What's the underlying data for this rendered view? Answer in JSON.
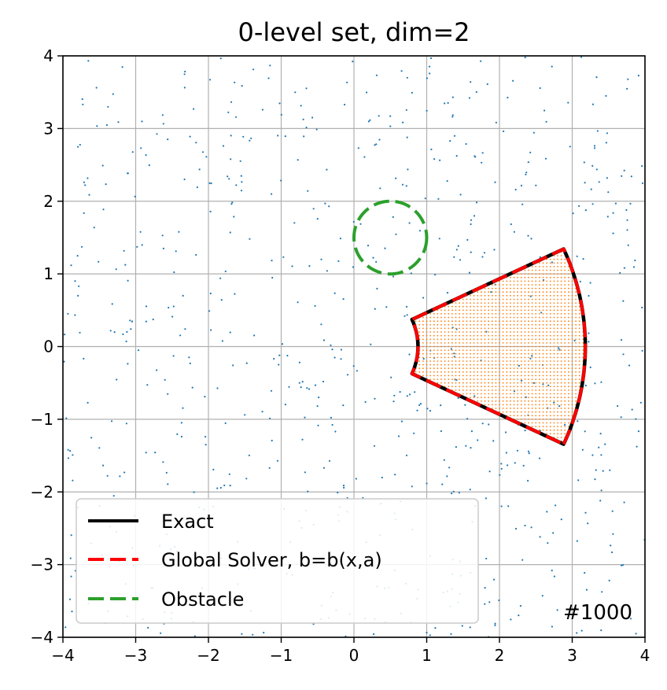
{
  "chart_data": {
    "type": "scatter",
    "title": "0-level set, dim=2",
    "xlabel": "",
    "ylabel": "",
    "xlim": [
      -4,
      4
    ],
    "ylim": [
      -4,
      4
    ],
    "x_ticks": [
      -4,
      -3,
      -2,
      -1,
      0,
      1,
      2,
      3,
      4
    ],
    "y_ticks": [
      -4,
      -3,
      -2,
      -1,
      0,
      1,
      2,
      3,
      4
    ],
    "x_tick_labels": [
      "−4",
      "−3",
      "−2",
      "−1",
      "0",
      "1",
      "2",
      "3",
      "4"
    ],
    "y_tick_labels": [
      "−4",
      "−3",
      "−2",
      "−1",
      "0",
      "1",
      "2",
      "3",
      "4"
    ],
    "grid": true,
    "legend_position": "lower-left",
    "annotation": "#1000",
    "series": [
      {
        "name": "Exact",
        "kind": "line",
        "style": "solid",
        "color": "#000000",
        "shape": "annular sector: inner arc radius ≈0.85, outer arc radius ≈3.2, half-angle ≈25°",
        "corners": [
          [
            0.82,
            0.35
          ],
          [
            2.88,
            1.35
          ],
          [
            2.88,
            -1.35
          ],
          [
            0.82,
            -0.35
          ]
        ]
      },
      {
        "name": "Global Solver, b=b(x,a)",
        "kind": "line",
        "style": "dashed",
        "color": "#ff0000",
        "corners": [
          [
            0.82,
            0.35
          ],
          [
            2.88,
            1.35
          ],
          [
            2.88,
            -1.35
          ],
          [
            0.82,
            -0.35
          ]
        ]
      },
      {
        "name": "Obstacle",
        "kind": "line",
        "style": "dashed",
        "color": "#2ca02c",
        "shape": "circle",
        "center": [
          0.5,
          1.5
        ],
        "radius": 0.5
      }
    ],
    "sample_points": {
      "color": "#1f77b4",
      "count_approx": 750,
      "distribution": "uniform random over [-4,4]×[-4,4]"
    },
    "region_fill": {
      "color": "#ff7f0e",
      "grid_spacing": 0.05,
      "region": "inside the annular sector"
    }
  }
}
